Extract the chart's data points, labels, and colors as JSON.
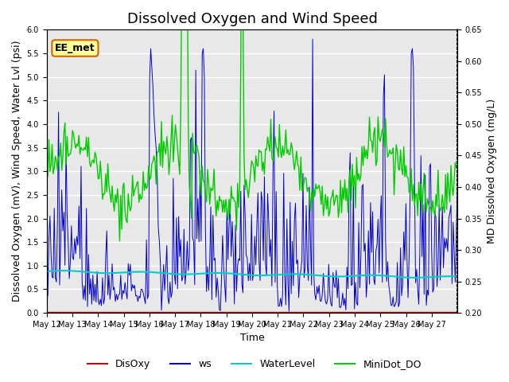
{
  "title": "Dissolved Oxygen and Wind Speed",
  "ylabel_left": "Dissolved Oxygen (mV), Wind Speed, Water Lvl (psi)",
  "ylabel_right": "MD Dissolved Oxygen (mg/L)",
  "xlabel": "Time",
  "ylim_left": [
    0.0,
    6.0
  ],
  "ylim_right": [
    0.2,
    0.65
  ],
  "xtick_labels": [
    "May 12",
    "May 13",
    "May 14",
    "May 15",
    "May 16",
    "May 17",
    "May 18",
    "May 19",
    "May 20",
    "May 21",
    "May 22",
    "May 23",
    "May 24",
    "May 25",
    "May 26",
    "May 27"
  ],
  "annotation_text": "EE_met",
  "colors": {
    "DisOxy": "#cc0000",
    "ws": "#0000cc",
    "WaterLevel": "#00cccc",
    "MiniDot_DO": "#00cc00"
  },
  "background_color": "#e8e8e8",
  "grid_color": "#ffffff",
  "title_fontsize": 13,
  "label_fontsize": 9,
  "tick_fontsize": 7
}
